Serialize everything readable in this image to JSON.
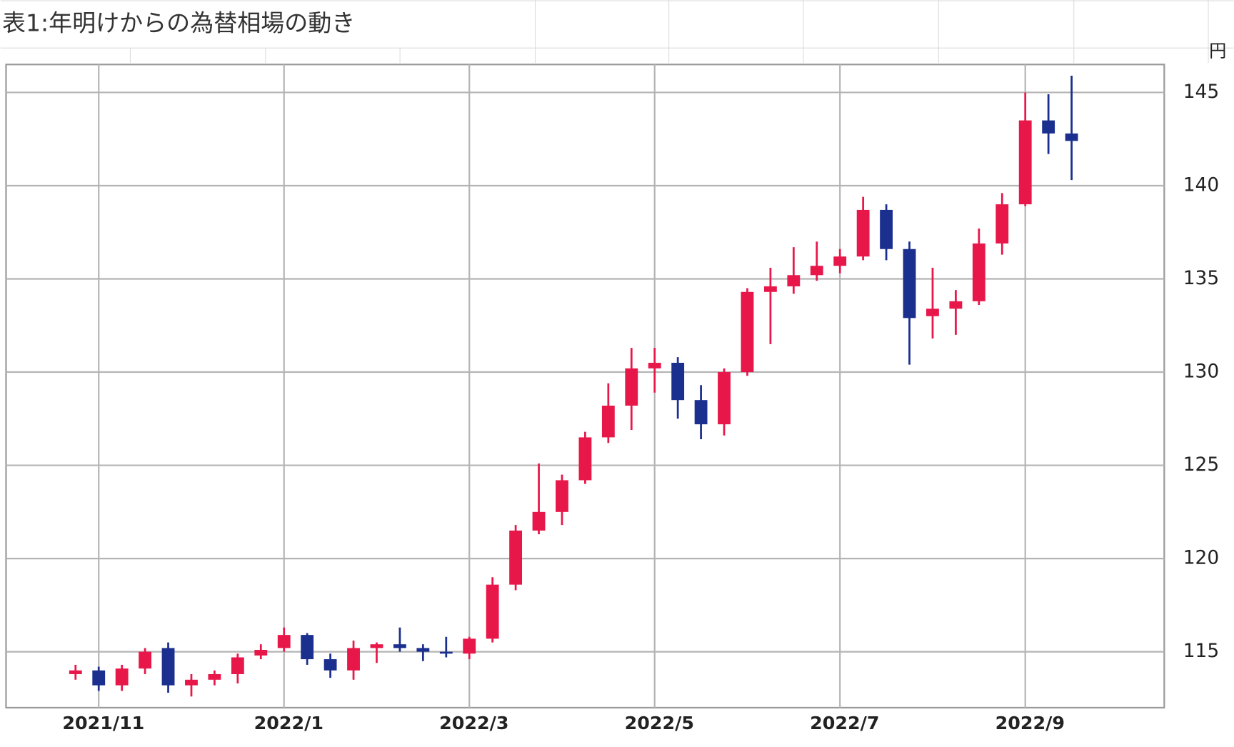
{
  "chart_data": {
    "type": "candlestick",
    "title": "表1:年明けからの為替相場の動き",
    "y_unit": "円",
    "y_axis_side": "right",
    "grid": true,
    "up_color": "#e8174a",
    "down_color": "#1b2f8f",
    "xlim": [
      0,
      12.5
    ],
    "ylim": [
      112,
      146.5
    ],
    "xticks": [
      {
        "value": 1,
        "label": "2021/11"
      },
      {
        "value": 3,
        "label": "2022/1"
      },
      {
        "value": 5,
        "label": "2022/3"
      },
      {
        "value": 7,
        "label": "2022/5"
      },
      {
        "value": 9,
        "label": "2022/7"
      },
      {
        "value": 11,
        "label": "2022/9"
      }
    ],
    "yticks": [
      115,
      120,
      125,
      130,
      135,
      140,
      145
    ],
    "x": [
      0.75,
      1,
      1.25,
      1.5,
      1.75,
      2,
      2.25,
      2.5,
      2.75,
      3,
      3.25,
      3.5,
      3.75,
      4,
      4.25,
      4.5,
      4.75,
      5,
      5.25,
      5.5,
      5.75,
      6,
      6.25,
      6.5,
      6.75,
      7,
      7.25,
      7.5,
      7.75,
      8,
      8.25,
      8.5,
      8.75,
      9,
      9.25,
      9.5,
      9.75,
      10,
      10.25,
      10.5,
      10.75,
      11,
      11.25,
      11.5
    ],
    "open": [
      113.8,
      114.0,
      113.2,
      114.1,
      115.2,
      113.2,
      113.5,
      113.8,
      114.8,
      115.2,
      115.9,
      114.6,
      114.0,
      115.2,
      115.4,
      115.2,
      115.0,
      114.9,
      115.7,
      118.6,
      121.5,
      122.5,
      124.2,
      126.5,
      128.2,
      130.2,
      130.5,
      128.5,
      127.2,
      130.0,
      134.3,
      134.6,
      135.2,
      135.7,
      136.2,
      138.7,
      136.6,
      133.0,
      133.4,
      133.8,
      136.9,
      139.0,
      143.5,
      142.8
    ],
    "high": [
      114.3,
      114.2,
      114.3,
      115.2,
      115.5,
      113.8,
      114.0,
      114.9,
      115.4,
      116.3,
      116.0,
      114.9,
      115.6,
      115.5,
      116.3,
      115.4,
      115.8,
      115.8,
      119.0,
      121.8,
      125.1,
      124.5,
      126.8,
      129.4,
      131.3,
      131.3,
      130.8,
      129.3,
      130.2,
      134.5,
      135.6,
      136.7,
      137.0,
      136.6,
      139.4,
      139.0,
      137.0,
      135.6,
      134.4,
      137.7,
      139.6,
      145.0,
      144.9,
      145.9
    ],
    "low": [
      113.5,
      112.9,
      112.9,
      113.8,
      112.8,
      112.6,
      113.2,
      113.3,
      114.6,
      115.0,
      114.3,
      113.6,
      113.5,
      114.4,
      115.0,
      114.5,
      114.7,
      114.6,
      115.5,
      118.3,
      121.3,
      121.8,
      124.0,
      126.2,
      126.9,
      128.9,
      127.5,
      126.4,
      126.6,
      129.8,
      131.5,
      134.2,
      134.9,
      135.3,
      136.0,
      136.0,
      130.4,
      131.8,
      132.0,
      133.6,
      136.3,
      138.9,
      141.7,
      140.3
    ],
    "close": [
      114.0,
      113.2,
      114.1,
      115.0,
      113.2,
      113.5,
      113.8,
      114.7,
      115.1,
      115.9,
      114.6,
      114.0,
      115.2,
      115.4,
      115.2,
      115.0,
      114.9,
      115.7,
      118.6,
      121.5,
      122.5,
      124.2,
      126.5,
      128.2,
      130.2,
      130.5,
      128.5,
      127.2,
      130.0,
      134.3,
      134.6,
      135.2,
      135.7,
      136.2,
      138.7,
      136.6,
      132.9,
      133.4,
      133.8,
      136.9,
      139.0,
      143.5,
      142.8,
      142.4
    ]
  }
}
